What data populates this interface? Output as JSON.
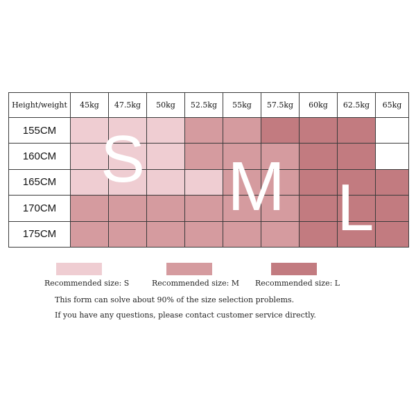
{
  "table": {
    "corner_label": "Height/weight",
    "weights": [
      "45kg",
      "47.5kg",
      "50kg",
      "52.5kg",
      "55kg",
      "57.5kg",
      "60kg",
      "62.5kg",
      "65kg"
    ],
    "rows": [
      {
        "height": "155CM",
        "sizes": [
          "S",
          "S",
          "S",
          "M",
          "M",
          "L",
          "L",
          "L",
          ""
        ]
      },
      {
        "height": "160CM",
        "sizes": [
          "S",
          "S",
          "S",
          "M",
          "M",
          "M",
          "L",
          "L",
          ""
        ]
      },
      {
        "height": "165CM",
        "sizes": [
          "S",
          "S",
          "S",
          "S",
          "M",
          "M",
          "L",
          "L",
          "L"
        ]
      },
      {
        "height": "170CM",
        "sizes": [
          "M",
          "M",
          "M",
          "M",
          "M",
          "M",
          "L",
          "L",
          "L"
        ]
      },
      {
        "height": "175CM",
        "sizes": [
          "M",
          "M",
          "M",
          "M",
          "M",
          "M",
          "L",
          "L",
          "L"
        ]
      }
    ]
  },
  "overlay_letters": {
    "s": "S",
    "m": "M",
    "l": "L"
  },
  "colors": {
    "S": "#efcdd2",
    "M": "#d59b9f",
    "L": "#c27b80",
    "empty": "#ffffff",
    "grid": "#3a3a3a"
  },
  "legend": {
    "s_label": "Recommended size: S",
    "m_label": "Recommended size: M",
    "l_label": "Recommended size: L"
  },
  "notes": {
    "line1": "This form can solve about 90% of the size selection problems.",
    "line2": "If you have any questions, please contact customer service directly."
  }
}
